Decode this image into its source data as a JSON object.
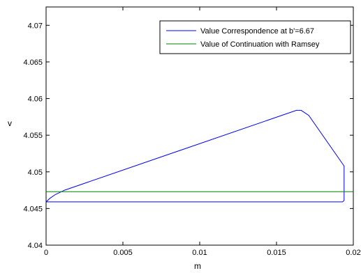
{
  "chart_data": {
    "type": "line",
    "xlabel": "m",
    "ylabel": "v",
    "xlim": [
      0,
      0.02
    ],
    "ylim": [
      4.04,
      4.0725
    ],
    "x_ticks": [
      0,
      0.005,
      0.01,
      0.015,
      0.02
    ],
    "x_tick_labels": [
      "0",
      "0.005",
      "0.01",
      "0.015",
      "0.02"
    ],
    "y_ticks": [
      4.04,
      4.045,
      4.05,
      4.055,
      4.06,
      4.065,
      4.07
    ],
    "y_tick_labels": [
      "4.04",
      "4.045",
      "4.05",
      "4.055",
      "4.06",
      "4.065",
      "4.07"
    ],
    "grid": false,
    "legend_position": "top-right",
    "series": [
      {
        "name": "Value Correspondence at b'=6.67",
        "color": "#0000ff",
        "x": [
          0,
          0.00025,
          0.0006,
          0.0012,
          0.0163,
          0.0166,
          0.0171,
          0.0194,
          0.0194,
          0.0193,
          0.0191,
          0
        ],
        "y": [
          4.0459,
          4.0464,
          4.0469,
          4.0475,
          4.0584,
          4.0584,
          4.0577,
          4.0508,
          4.0461,
          4.0459,
          4.0459,
          4.0459
        ]
      },
      {
        "name": "Value of Continuation with Ramsey",
        "color": "#008000",
        "x": [
          0,
          0.02
        ],
        "y": [
          4.0473,
          4.0473
        ]
      }
    ]
  }
}
